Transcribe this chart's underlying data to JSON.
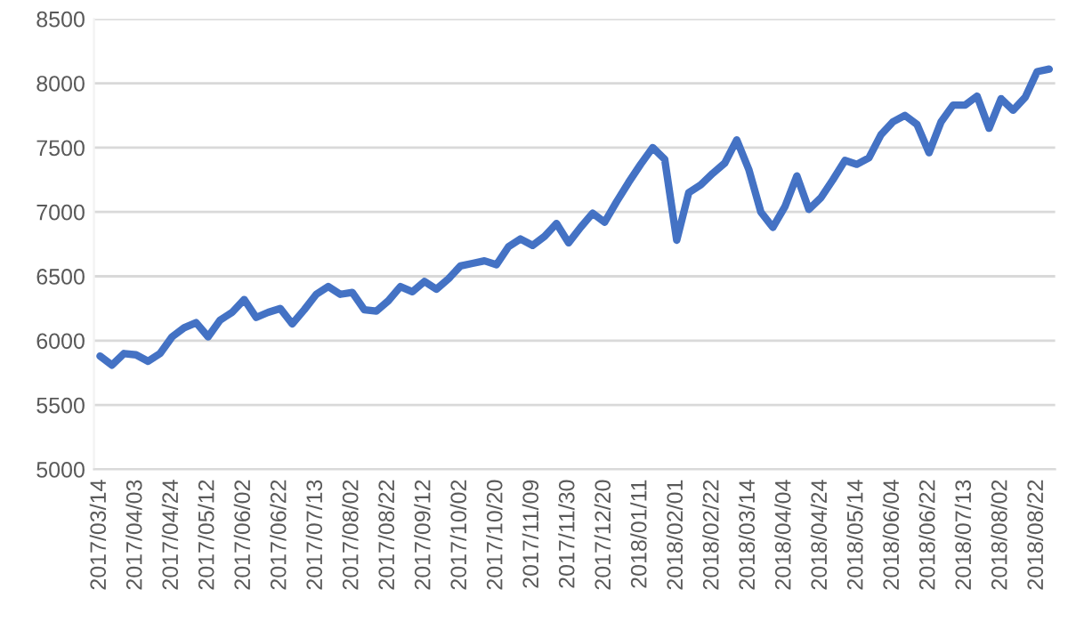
{
  "chart_data": {
    "type": "line",
    "categories": [
      "2017/03/14",
      null,
      null,
      "2017/04/03",
      null,
      null,
      "2017/04/24",
      null,
      null,
      "2017/05/12",
      null,
      null,
      "2017/06/02",
      null,
      null,
      "2017/06/22",
      null,
      null,
      "2017/07/13",
      null,
      null,
      "2017/08/02",
      null,
      null,
      "2017/08/22",
      null,
      null,
      "2017/09/12",
      null,
      null,
      "2017/10/02",
      null,
      null,
      "2017/10/20",
      null,
      null,
      "2017/11/09",
      null,
      null,
      "2017/11/30",
      null,
      null,
      "2017/12/20",
      null,
      null,
      "2018/01/11",
      null,
      null,
      "2018/02/01",
      null,
      null,
      "2018/02/22",
      null,
      null,
      "2018/03/14",
      null,
      null,
      "2018/04/04",
      null,
      null,
      "2018/04/24",
      null,
      null,
      "2018/05/14",
      null,
      null,
      "2018/06/04",
      null,
      null,
      "2018/06/22",
      null,
      null,
      "2018/07/13",
      null,
      null,
      "2018/08/02",
      null,
      null,
      "2018/08/22",
      null
    ],
    "series": [
      {
        "color": "#4472c4",
        "values": [
          5880,
          5810,
          5900,
          5890,
          5840,
          5900,
          6030,
          6100,
          6140,
          6030,
          6160,
          6220,
          6320,
          6180,
          6220,
          6250,
          6130,
          6240,
          6360,
          6420,
          6360,
          6375,
          6240,
          6230,
          6310,
          6420,
          6380,
          6460,
          6400,
          6480,
          6580,
          6600,
          6620,
          6590,
          6730,
          6790,
          6740,
          6810,
          6910,
          6760,
          6880,
          6990,
          6920,
          7080,
          7230,
          7370,
          7500,
          7410,
          6780,
          7150,
          7210,
          7300,
          7380,
          7560,
          7330,
          7000,
          6880,
          7040,
          7280,
          7020,
          7110,
          7250,
          7400,
          7370,
          7420,
          7600,
          7700,
          7750,
          7680,
          7460,
          7700,
          7830,
          7830,
          7900,
          7650,
          7880,
          7790,
          7890,
          8090,
          8110
        ]
      }
    ],
    "ylim": [
      5000,
      8500
    ],
    "yticks": [
      5000,
      5500,
      6000,
      6500,
      7000,
      7500,
      8000,
      8500
    ],
    "grid": "y",
    "legend": false,
    "marker": "none",
    "line_style": "solid"
  }
}
